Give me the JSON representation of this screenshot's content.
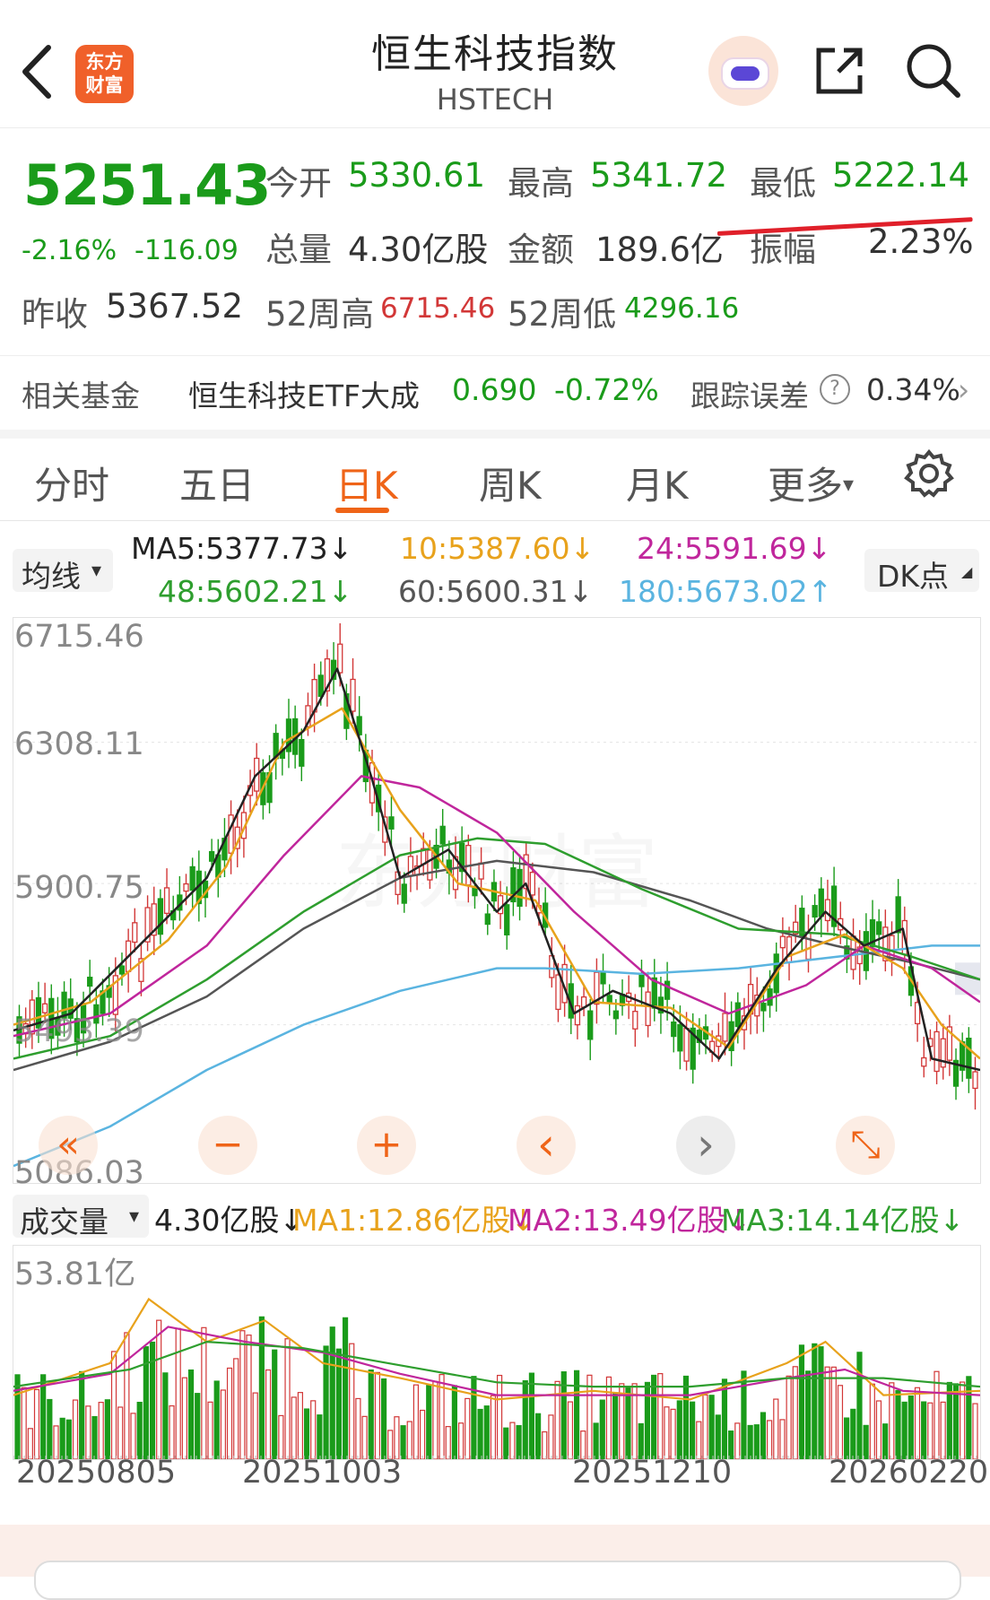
{
  "header": {
    "logo_line1": "东方",
    "logo_line2": "财富",
    "title": "恒生科技指数",
    "subtitle": "HSTECH"
  },
  "quote": {
    "price": "5251.43",
    "change_pct": "-2.16%",
    "change_abs": "-116.09",
    "prev_close_label": "昨收",
    "prev_close": "5367.52",
    "open_label": "今开",
    "open": "5330.61",
    "high_label": "最高",
    "high": "5341.72",
    "low_label": "最低",
    "low": "5222.14",
    "volume_label": "总量",
    "volume": "4.30亿股",
    "amount_label": "金额",
    "amount": "189.6亿",
    "amplitude_label": "振幅",
    "amplitude": "2.23%",
    "w52_high_label": "52周高",
    "w52_high": "6715.46",
    "w52_low_label": "52周低",
    "w52_low": "4296.16",
    "colors": {
      "down": "#1a9b1a",
      "up": "#d23737"
    }
  },
  "fund": {
    "label": "相关基金",
    "name": "恒生科技ETF大成",
    "price": "0.690",
    "change": "-0.72%",
    "tracking_label": "跟踪误差",
    "help_glyph": "?",
    "tracking_value": "0.34%",
    "arrow": "›"
  },
  "tabs": {
    "items": [
      "分时",
      "五日",
      "日K",
      "周K",
      "月K",
      "更多"
    ],
    "active": "日K",
    "more_caret": "▾"
  },
  "ma_bar": {
    "selector": "均线",
    "caret": "▾",
    "ma5": "MA5:5377.73↓",
    "ma10": "10:5387.60↓",
    "ma24": "24:5591.69↓",
    "ma48": "48:5602.21↓",
    "ma60": "60:5600.31↓",
    "ma180": "180:5673.02↑",
    "dk": "DK点",
    "colors": {
      "ma5": "#222222",
      "ma10": "#e8a21c",
      "ma24": "#c0269c",
      "ma48": "#2e9e2e",
      "ma60": "#555555",
      "ma180": "#5ab4e0"
    }
  },
  "price_axis": [
    "6715.46",
    "6308.11",
    "5900.75",
    "5493.39",
    "5086.03"
  ],
  "controls": {
    "rewind": "«",
    "zoom_out": "−",
    "zoom_in": "+",
    "prev": "‹",
    "next": "›",
    "fullscreen": "⤡"
  },
  "volume_bar": {
    "selector": "成交量",
    "caret": "▾",
    "current": "4.30亿股↓",
    "ma1": "MA1:12.86亿股↓",
    "ma2": "MA2:13.49亿股↓",
    "ma3": "MA3:14.14亿股↓",
    "max_label": "53.81亿"
  },
  "dates": [
    "20250805",
    "20251003",
    "20251210",
    "20260220"
  ],
  "watermark": "东方财富"
}
